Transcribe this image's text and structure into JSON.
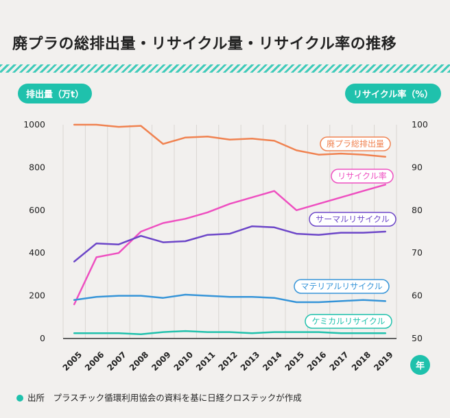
{
  "title": "廃プラの総排出量・リサイクル量・リサイクル率の推移",
  "source": "出所　プラスチック循環利用協会の資料を基に日経クロステックが作成",
  "chart_data": {
    "type": "line",
    "x": [
      "2005",
      "2006",
      "2007",
      "2008",
      "2009",
      "2010",
      "2011",
      "2012",
      "2013",
      "2014",
      "2015",
      "2016",
      "2017",
      "2018",
      "2019"
    ],
    "ylabel_left": "排出量（万t）",
    "ylabel_right": "リサイクル率（%）",
    "xlabel": "年",
    "ylim_left": [
      0,
      1000
    ],
    "yticks_left": [
      "0",
      "200",
      "400",
      "600",
      "800",
      "1000"
    ],
    "ylim_right": [
      50,
      100
    ],
    "yticks_right": [
      "50",
      "60",
      "70",
      "80",
      "90",
      "100"
    ],
    "grid": "vertical",
    "series": [
      {
        "name": "廃プラ総排出量",
        "axis": "left",
        "color": "#f08250",
        "values": [
          1000,
          1000,
          990,
          995,
          910,
          940,
          945,
          930,
          935,
          925,
          880,
          860,
          865,
          860,
          850
        ]
      },
      {
        "name": "リサイクル率",
        "axis": "right",
        "color": "#ee4fc0",
        "values": [
          58,
          69,
          70,
          75,
          77,
          78,
          79.5,
          81.5,
          83,
          84.5,
          80,
          81.5,
          83,
          84.5,
          86
        ]
      },
      {
        "name": "サーマルリサイクル",
        "axis": "left",
        "color": "#6c46c8",
        "values": [
          360,
          445,
          440,
          480,
          450,
          455,
          485,
          490,
          525,
          520,
          490,
          485,
          495,
          495,
          500
        ]
      },
      {
        "name": "マテリアルリサイクル",
        "axis": "left",
        "color": "#3594d8",
        "values": [
          180,
          195,
          200,
          200,
          190,
          205,
          200,
          195,
          195,
          190,
          170,
          170,
          175,
          180,
          175
        ]
      },
      {
        "name": "ケミカルリサイクル",
        "axis": "left",
        "color": "#1fc1ac",
        "values": [
          25,
          25,
          25,
          20,
          30,
          35,
          30,
          30,
          25,
          30,
          30,
          30,
          25,
          25,
          25
        ]
      }
    ]
  }
}
